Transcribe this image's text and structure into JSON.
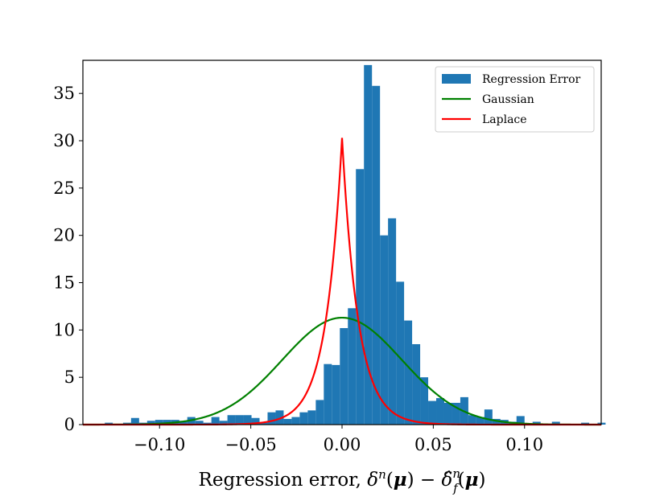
{
  "chart_data": {
    "type": "bar",
    "title": "",
    "xlabel": "Regression error, δⁿ(μ) − δ̂ⁿ_f(μ)",
    "xlabel_parts": {
      "prefix": "Regression error, ",
      "delta": "δ",
      "sup_n": "n",
      "mu": "μ",
      "minus": " − ",
      "hat_delta": "δ̂",
      "sub_f": "f"
    },
    "ylabel": "",
    "xlim": [
      -0.142,
      0.142
    ],
    "ylim": [
      0,
      38.5
    ],
    "x_ticks": [
      {
        "value": -0.1,
        "label": "−0.10"
      },
      {
        "value": -0.05,
        "label": "−0.05"
      },
      {
        "value": 0.0,
        "label": "0.00"
      },
      {
        "value": 0.05,
        "label": "0.05"
      },
      {
        "value": 0.1,
        "label": "0.10"
      }
    ],
    "y_ticks": [
      {
        "value": 0,
        "label": "0"
      },
      {
        "value": 5,
        "label": "5"
      },
      {
        "value": 10,
        "label": "10"
      },
      {
        "value": 15,
        "label": "15"
      },
      {
        "value": 20,
        "label": "20"
      },
      {
        "value": 25,
        "label": "25"
      },
      {
        "value": 30,
        "label": "30"
      },
      {
        "value": 35,
        "label": "35"
      }
    ],
    "grid": false,
    "legend_position": "top-right",
    "bin_width": 0.0044,
    "histogram": {
      "name": "Regression Error",
      "color": "#1f77b4",
      "bins": [
        {
          "x": -0.13,
          "count": 0.2
        },
        {
          "x": -0.12,
          "count": 0.2
        },
        {
          "x": -0.1156,
          "count": 0.7
        },
        {
          "x": -0.1112,
          "count": 0.2
        },
        {
          "x": -0.1068,
          "count": 0.4
        },
        {
          "x": -0.1024,
          "count": 0.5
        },
        {
          "x": -0.098,
          "count": 0.5
        },
        {
          "x": -0.0936,
          "count": 0.5
        },
        {
          "x": -0.0892,
          "count": 0.4
        },
        {
          "x": -0.0848,
          "count": 0.8
        },
        {
          "x": -0.0804,
          "count": 0.4
        },
        {
          "x": -0.076,
          "count": 0.2
        },
        {
          "x": -0.0716,
          "count": 0.8
        },
        {
          "x": -0.0672,
          "count": 0.4
        },
        {
          "x": -0.0628,
          "count": 1.0
        },
        {
          "x": -0.0584,
          "count": 1.0
        },
        {
          "x": -0.054,
          "count": 1.0
        },
        {
          "x": -0.0496,
          "count": 0.7
        },
        {
          "x": -0.0452,
          "count": 0.2
        },
        {
          "x": -0.0408,
          "count": 1.3
        },
        {
          "x": -0.0364,
          "count": 1.5
        },
        {
          "x": -0.032,
          "count": 0.6
        },
        {
          "x": -0.0276,
          "count": 0.8
        },
        {
          "x": -0.0232,
          "count": 1.3
        },
        {
          "x": -0.0188,
          "count": 1.5
        },
        {
          "x": -0.0144,
          "count": 2.6
        },
        {
          "x": -0.01,
          "count": 6.4
        },
        {
          "x": -0.0056,
          "count": 6.3
        },
        {
          "x": -0.0012,
          "count": 10.2
        },
        {
          "x": 0.0032,
          "count": 12.3
        },
        {
          "x": 0.0076,
          "count": 27.0
        },
        {
          "x": 0.012,
          "count": 38.0
        },
        {
          "x": 0.0164,
          "count": 35.8
        },
        {
          "x": 0.0208,
          "count": 20.0
        },
        {
          "x": 0.0252,
          "count": 21.8
        },
        {
          "x": 0.0296,
          "count": 15.1
        },
        {
          "x": 0.034,
          "count": 11.0
        },
        {
          "x": 0.0384,
          "count": 8.5
        },
        {
          "x": 0.0428,
          "count": 5.0
        },
        {
          "x": 0.0472,
          "count": 2.5
        },
        {
          "x": 0.0516,
          "count": 2.8
        },
        {
          "x": 0.056,
          "count": 2.3
        },
        {
          "x": 0.0604,
          "count": 2.3
        },
        {
          "x": 0.0648,
          "count": 2.9
        },
        {
          "x": 0.0692,
          "count": 1.0
        },
        {
          "x": 0.0736,
          "count": 0.8
        },
        {
          "x": 0.078,
          "count": 1.6
        },
        {
          "x": 0.0824,
          "count": 0.6
        },
        {
          "x": 0.0868,
          "count": 0.5
        },
        {
          "x": 0.0912,
          "count": 0.3
        },
        {
          "x": 0.0956,
          "count": 0.9
        },
        {
          "x": 0.1,
          "count": 0.1
        },
        {
          "x": 0.1044,
          "count": 0.3
        },
        {
          "x": 0.115,
          "count": 0.3
        },
        {
          "x": 0.131,
          "count": 0.2
        },
        {
          "x": 0.14,
          "count": 0.2
        }
      ]
    },
    "curves": [
      {
        "name": "Gaussian",
        "color": "#008000",
        "family": "gaussian",
        "mean": 0.0,
        "sigma": 0.0327,
        "peak": 11.3
      },
      {
        "name": "Laplace",
        "color": "#ff0000",
        "family": "laplace",
        "mean": 0.0,
        "scale": 0.00883,
        "peak": 30.3
      }
    ]
  }
}
